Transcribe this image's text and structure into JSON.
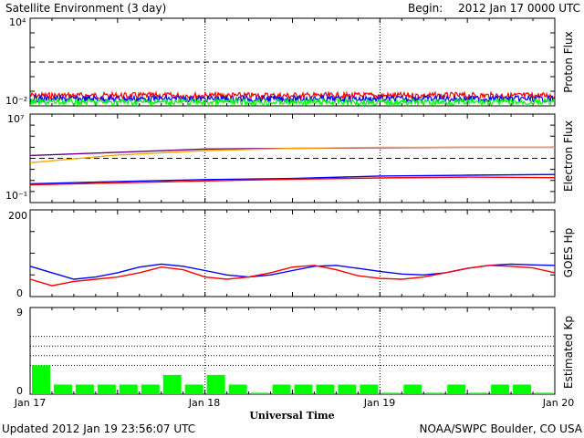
{
  "title": "Satellite Environment (3 day)",
  "begin_label": "Begin:",
  "begin_value": "2012 Jan 17 0000 UTC",
  "footer_updated": "Updated 2012 Jan 19 23:56:07 UTC",
  "footer_credit": "NOAA/SWPC Boulder, CO USA",
  "colors": {
    "red": "#ff0000",
    "blue": "#0000ff",
    "green": "#00ff00",
    "orange": "#ffa500",
    "purple": "#6a0080"
  },
  "chart_data": [
    {
      "type": "line",
      "panel": "proton-flux",
      "ylabel": "Proton Flux",
      "yscale": "log",
      "ylim": [
        0.01,
        10000
      ],
      "ytick_labels": [
        "10⁴",
        "10⁻²"
      ],
      "threshold": 10,
      "series": [
        {
          "color": "red",
          "level": 0.05
        },
        {
          "color": "blue",
          "level": 0.03
        },
        {
          "color": "green",
          "level": 0.018
        }
      ]
    },
    {
      "type": "line",
      "panel": "electron-flux",
      "ylabel": "Electron Flux",
      "yscale": "log",
      "ylim": [
        0.1,
        10000000
      ],
      "ytick_labels": [
        "10⁷",
        "10⁻¹"
      ],
      "threshold": 1000,
      "series": [
        {
          "color": "purple",
          "x": [
            0,
            12,
            24,
            36,
            48,
            60,
            72
          ],
          "y": [
            1800,
            3500,
            7000,
            8000,
            9000,
            10000,
            10000
          ]
        },
        {
          "color": "orange",
          "x": [
            0,
            12,
            24,
            36,
            48,
            60,
            72
          ],
          "y": [
            400,
            2000,
            5000,
            8000,
            10000,
            10000,
            10000
          ]
        },
        {
          "color": "blue",
          "x": [
            0,
            12,
            24,
            36,
            48,
            60,
            72
          ],
          "y": [
            5,
            8,
            12,
            15,
            25,
            30,
            35
          ]
        },
        {
          "color": "red",
          "x": [
            0,
            12,
            24,
            36,
            48,
            60,
            72
          ],
          "y": [
            4,
            6,
            9,
            13,
            17,
            20,
            18
          ]
        }
      ]
    },
    {
      "type": "line",
      "panel": "goes-hp",
      "ylabel": "GOES Hp",
      "ylim": [
        0,
        200
      ],
      "ytick_labels": [
        "200",
        "0"
      ],
      "series": [
        {
          "color": "blue",
          "x": [
            0,
            3,
            6,
            9,
            12,
            15,
            18,
            21,
            24,
            27,
            30,
            33,
            36,
            39,
            42,
            45,
            48,
            51,
            54,
            57,
            60,
            63,
            66,
            69,
            72
          ],
          "y": [
            70,
            55,
            40,
            45,
            55,
            68,
            75,
            70,
            60,
            50,
            45,
            50,
            60,
            70,
            72,
            65,
            58,
            52,
            50,
            55,
            65,
            72,
            75,
            73,
            72
          ]
        },
        {
          "color": "red",
          "x": [
            0,
            3,
            6,
            9,
            12,
            15,
            18,
            21,
            24,
            27,
            30,
            33,
            36,
            39,
            42,
            45,
            48,
            51,
            54,
            57,
            60,
            63,
            66,
            69,
            72
          ],
          "y": [
            40,
            25,
            35,
            40,
            45,
            55,
            68,
            62,
            45,
            40,
            45,
            55,
            68,
            72,
            62,
            48,
            42,
            40,
            45,
            55,
            65,
            72,
            70,
            66,
            55
          ]
        }
      ]
    },
    {
      "type": "bar",
      "panel": "estimated-kp",
      "ylabel": "Estimated Kp",
      "ylim": [
        0,
        9
      ],
      "ytick_labels": [
        "9",
        "0"
      ],
      "color": "green",
      "bar_hours": 3,
      "values": [
        3,
        1,
        1,
        1,
        1,
        1,
        2,
        1,
        2,
        1,
        0,
        1,
        1,
        1,
        1,
        1,
        0,
        1,
        0,
        1,
        0,
        1,
        1,
        0
      ],
      "xlabel": "Universal Time",
      "xtick_labels": [
        "Jan 17",
        "Jan 18",
        "Jan 19",
        "Jan 20"
      ]
    }
  ]
}
